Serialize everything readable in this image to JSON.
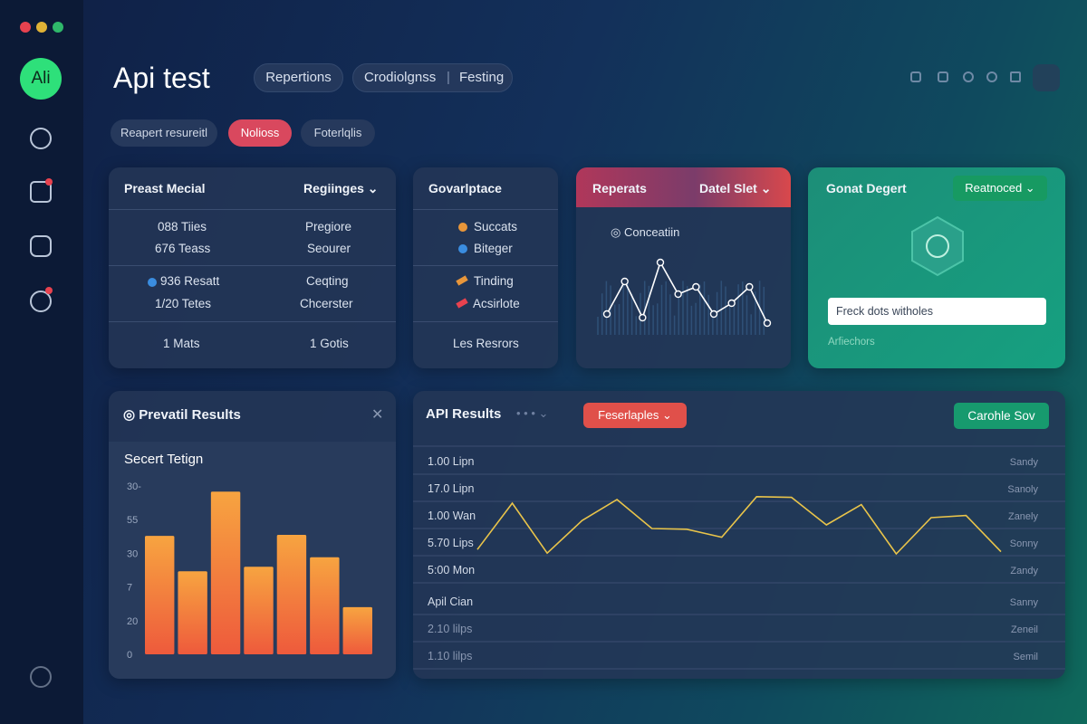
{
  "sidebar": {
    "avatar": "Ali"
  },
  "header": {
    "title": "Api test",
    "tabs": [
      "Repertions",
      "Crodiolgnss",
      "Festing"
    ]
  },
  "filters": [
    "Reapert resureitl",
    "Nolioss",
    "Foterlqlis"
  ],
  "card1": {
    "title": "Preast Mecial",
    "dropdown": "Regiinges",
    "rows": [
      [
        "088 Tiies",
        "Pregiore"
      ],
      [
        "676 Teass",
        "Seourer"
      ],
      [
        "936 Resatt",
        "Ceqting"
      ],
      [
        "1/20 Tetes",
        "Chcerster"
      ],
      [
        "1 Mats",
        "1 Gotis"
      ]
    ]
  },
  "card2": {
    "title": "Govarlptace",
    "items": [
      "Succats",
      "Biteger",
      "Tinding",
      "Acsirlote",
      "Les Resrors"
    ]
  },
  "card3": {
    "title": "Reperats",
    "dropdown": "Datel Slet",
    "legend": "Conceatiin",
    "values": [
      23,
      59,
      19,
      80,
      45,
      53,
      23,
      35,
      53,
      13
    ],
    "ylim": [
      0,
      90
    ]
  },
  "card4": {
    "title": "Gonat Degert",
    "button": "Reatnoced",
    "input": "Freck dots witholes",
    "link": "Arfiechors"
  },
  "card5": {
    "title": "Prevatil Results",
    "subtitle": "Secert Tetign",
    "ytick_labels": [
      "30-",
      "55",
      "30",
      "7",
      "20",
      "0"
    ],
    "values": [
      21.1,
      14.8,
      29,
      15.6,
      21.3,
      17.3,
      8.4
    ],
    "ylim": [
      0,
      30
    ]
  },
  "card6": {
    "title": "API Results",
    "filter": "Feserlaples",
    "button": "Carohle Sov",
    "row_labels": [
      "1.00 Lipn",
      "17.0 Lipn",
      "1.00 Wan",
      "5.70 Lips",
      "5:00 Mon",
      "Apil Cian",
      "2.10 lilps",
      "1.10 lilps"
    ],
    "row_values": [
      "Sandy",
      "Sanoly",
      "Zanely",
      "Sonny",
      "Zandy",
      "Sanny",
      "Zeneil",
      "Semil"
    ],
    "values": [
      16,
      80,
      11,
      56,
      85,
      45,
      44,
      33,
      89,
      88,
      50,
      78,
      10,
      60,
      63,
      13
    ],
    "ylim": [
      0,
      100
    ]
  }
}
